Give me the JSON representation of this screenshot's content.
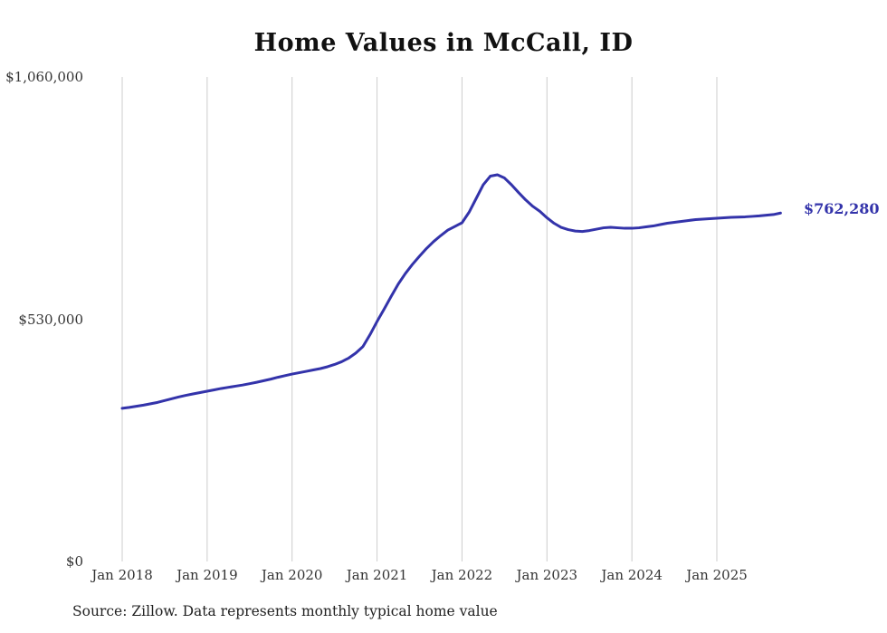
{
  "colors": {
    "line": "#3333aa",
    "grid": "#cccccc",
    "label": "#333333"
  },
  "chart_data": {
    "type": "line",
    "title": "Home Values in McCall, ID",
    "source": "Source: Zillow. Data represents monthly typical home value",
    "end_label": "$762,280",
    "end_value": 762280,
    "x_start": "2018-01",
    "x_end": "2025-10",
    "x_tick_labels": [
      "Jan 2018",
      "Jan 2019",
      "Jan 2020",
      "Jan 2021",
      "Jan 2022",
      "Jan 2023",
      "Jan 2024",
      "Jan 2025"
    ],
    "y_tick_labels": [
      "$0",
      "$530,000",
      "$1,060,000"
    ],
    "y_ticks": [
      0,
      530000,
      1060000
    ],
    "y_max": 1060000,
    "grid": "vertical-only",
    "legend": "none",
    "values": [
      335000,
      337000,
      339500,
      342000,
      345000,
      348000,
      352000,
      356000,
      360000,
      363500,
      366500,
      369500,
      372500,
      375500,
      378500,
      381000,
      383500,
      386000,
      389000,
      392000,
      395500,
      399000,
      403000,
      406500,
      410000,
      413000,
      416000,
      419000,
      422000,
      426000,
      431000,
      437000,
      445000,
      456000,
      470000,
      496000,
      525000,
      552000,
      580000,
      607000,
      630000,
      650000,
      668000,
      685000,
      700000,
      713000,
      725000,
      733000,
      741000,
      764000,
      794000,
      824000,
      843000,
      846000,
      839000,
      824000,
      807000,
      791000,
      777000,
      766000,
      752000,
      740000,
      731000,
      726000,
      723000,
      722000,
      724000,
      727000,
      730000,
      731000,
      730000,
      729000,
      729000,
      730000,
      732000,
      734000,
      737000,
      740000,
      742000,
      744000,
      746000,
      748000,
      749000,
      750000,
      751000,
      752000,
      753000,
      753500,
      754000,
      755000,
      756000,
      757500,
      759000,
      762280
    ]
  }
}
